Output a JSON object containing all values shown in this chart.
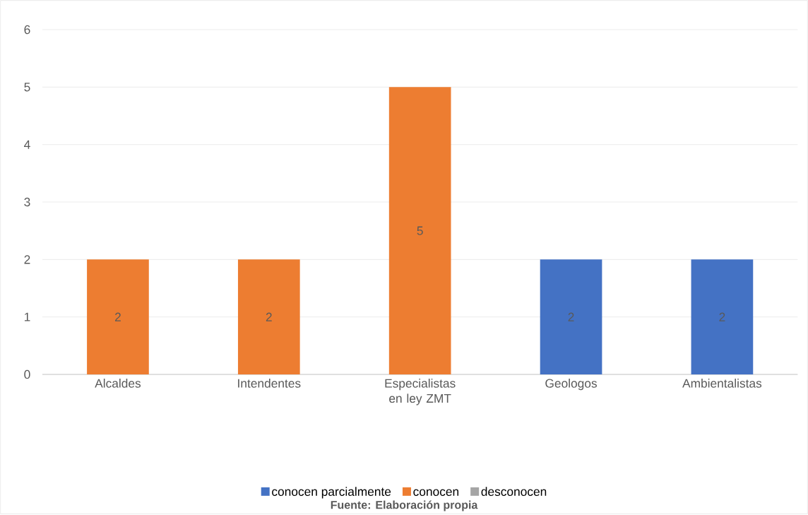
{
  "chart_data": {
    "type": "bar",
    "stacked": true,
    "categories": [
      "Alcaldes",
      "Intendentes",
      "Especialistas en ley ZMT",
      "Geologos",
      "Ambientalistas"
    ],
    "series": [
      {
        "name": "conocen parcialmente",
        "color": "#4472c4",
        "values": [
          null,
          null,
          null,
          2,
          2
        ]
      },
      {
        "name": "conocen",
        "color": "#ed7d31",
        "values": [
          2,
          2,
          5,
          null,
          null
        ]
      },
      {
        "name": "desconocen",
        "color": "#a5a5a5",
        "values": [
          null,
          null,
          null,
          null,
          null
        ]
      }
    ],
    "ylim": [
      0,
      6
    ],
    "yticks": [
      0,
      1,
      2,
      3,
      4,
      5,
      6
    ],
    "grid": "y",
    "legend": "bottom",
    "data_labels": true,
    "annotations": [
      "Fuente: Elaboración propia"
    ]
  }
}
